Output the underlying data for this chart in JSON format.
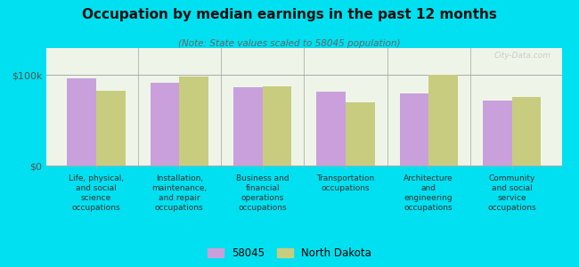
{
  "title": "Occupation by median earnings in the past 12 months",
  "subtitle": "(Note: State values scaled to 58045 population)",
  "categories": [
    "Life, physical,\nand social\nscience\noccupations",
    "Installation,\nmaintenance,\nand repair\noccupations",
    "Business and\nfinancial\noperations\noccupations",
    "Transportation\noccupations",
    "Architecture\nand\nengineering\noccupations",
    "Community\nand social\nservice\noccupations"
  ],
  "values_58045": [
    97000,
    92000,
    87000,
    82000,
    80000,
    72000
  ],
  "values_nd": [
    83000,
    98000,
    88000,
    70000,
    100000,
    76000
  ],
  "color_58045": "#c9a0dc",
  "color_nd": "#c8cc7f",
  "background_outer": "#00e0f0",
  "background_inner_top": "#f0f8f0",
  "background_inner": "#eef5e8",
  "ylim": [
    0,
    130000
  ],
  "yticks": [
    0,
    100000
  ],
  "ytick_labels": [
    "$0",
    "$100k"
  ],
  "legend_58045": "58045",
  "legend_nd": "North Dakota",
  "bar_width": 0.35,
  "watermark": "City-Data.com"
}
